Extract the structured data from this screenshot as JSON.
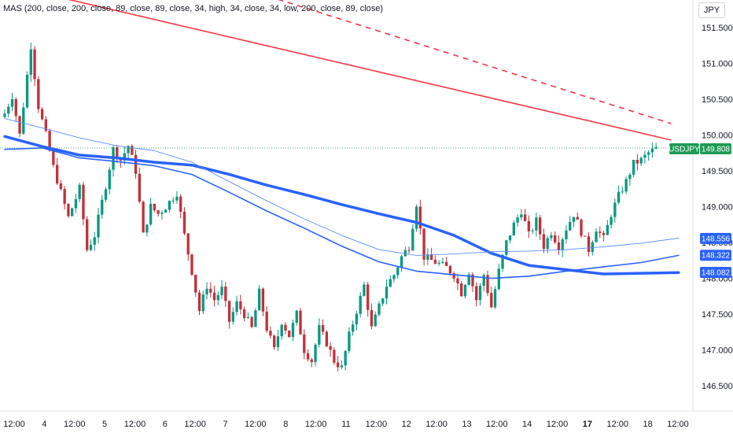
{
  "indicator": "MAS (200, close, 200, close, 89, close, 89, close, 34, high, 34, close, 34, low, 200, close, 89, close)",
  "currency": "JPY",
  "chart_data": {
    "type": "candlestick",
    "symbol": "USDJPY",
    "last_price": "149.808",
    "y_ticks": [
      "151.500",
      "151.000",
      "150.500",
      "150.000",
      "149.500",
      "149.000",
      "148.500",
      "148.000",
      "147.500",
      "147.000",
      "146.500"
    ],
    "x_ticks": [
      "12:00",
      "4",
      "12:00",
      "5",
      "12:00",
      "6",
      "12:00",
      "7",
      "12:00",
      "8",
      "12:00",
      "11",
      "12:00",
      "12",
      "12:00",
      "13",
      "12:00",
      "14",
      "12:00",
      "17",
      "12:00",
      "18",
      "12:00"
    ],
    "x_ticks_bold": [
      "17"
    ],
    "ylim": [
      146.35,
      151.7
    ],
    "ma_labels": [
      {
        "value": "148.556",
        "color": "#2962ff"
      },
      {
        "value": "148.322",
        "color": "#2962ff"
      },
      {
        "value": "148.082",
        "color": "#2962ff"
      }
    ],
    "trendlines": [
      {
        "style": "solid",
        "color": "#f23645",
        "from": [
          0,
          152.1
        ],
        "to": [
          178,
          149.93
        ]
      },
      {
        "style": "dashed",
        "color": "#f23645",
        "from": [
          0,
          153.1
        ],
        "to": [
          178,
          150.16
        ]
      }
    ],
    "ma_lines": [
      {
        "name": "MA 200",
        "color": "#2962ff",
        "width": 3.5,
        "points": [
          [
            0,
            149.98
          ],
          [
            10,
            149.84
          ],
          [
            20,
            149.72
          ],
          [
            30,
            149.68
          ],
          [
            40,
            149.62
          ],
          [
            50,
            149.58
          ],
          [
            60,
            149.45
          ],
          [
            70,
            149.3
          ],
          [
            80,
            149.17
          ],
          [
            90,
            149.03
          ],
          [
            100,
            148.9
          ],
          [
            110,
            148.78
          ],
          [
            120,
            148.6
          ],
          [
            130,
            148.35
          ],
          [
            140,
            148.18
          ],
          [
            150,
            148.12
          ],
          [
            160,
            148.06
          ],
          [
            170,
            148.07
          ],
          [
            180,
            148.08
          ]
        ]
      },
      {
        "name": "MA 89",
        "color": "#2962ff",
        "width": 1.6,
        "points": [
          [
            0,
            149.8
          ],
          [
            10,
            149.82
          ],
          [
            20,
            149.68
          ],
          [
            30,
            149.63
          ],
          [
            40,
            149.57
          ],
          [
            50,
            149.45
          ],
          [
            60,
            149.2
          ],
          [
            70,
            148.94
          ],
          [
            80,
            148.7
          ],
          [
            90,
            148.45
          ],
          [
            100,
            148.23
          ],
          [
            110,
            148.1
          ],
          [
            120,
            148.05
          ],
          [
            130,
            148.0
          ],
          [
            140,
            148.03
          ],
          [
            150,
            148.1
          ],
          [
            160,
            148.16
          ],
          [
            170,
            148.22
          ],
          [
            180,
            148.32
          ]
        ]
      },
      {
        "name": "MA 34 close",
        "color": "#5b8cff",
        "width": 0.9,
        "points": [
          [
            0,
            150.23
          ],
          [
            10,
            150.1
          ],
          [
            20,
            149.96
          ],
          [
            30,
            149.85
          ],
          [
            40,
            149.78
          ],
          [
            50,
            149.62
          ],
          [
            60,
            149.35
          ],
          [
            70,
            149.08
          ],
          [
            80,
            148.83
          ],
          [
            90,
            148.6
          ],
          [
            100,
            148.4
          ],
          [
            110,
            148.32
          ],
          [
            120,
            148.34
          ],
          [
            130,
            148.37
          ],
          [
            140,
            148.38
          ],
          [
            150,
            148.4
          ],
          [
            160,
            148.44
          ],
          [
            170,
            148.49
          ],
          [
            180,
            148.56
          ]
        ]
      }
    ]
  }
}
